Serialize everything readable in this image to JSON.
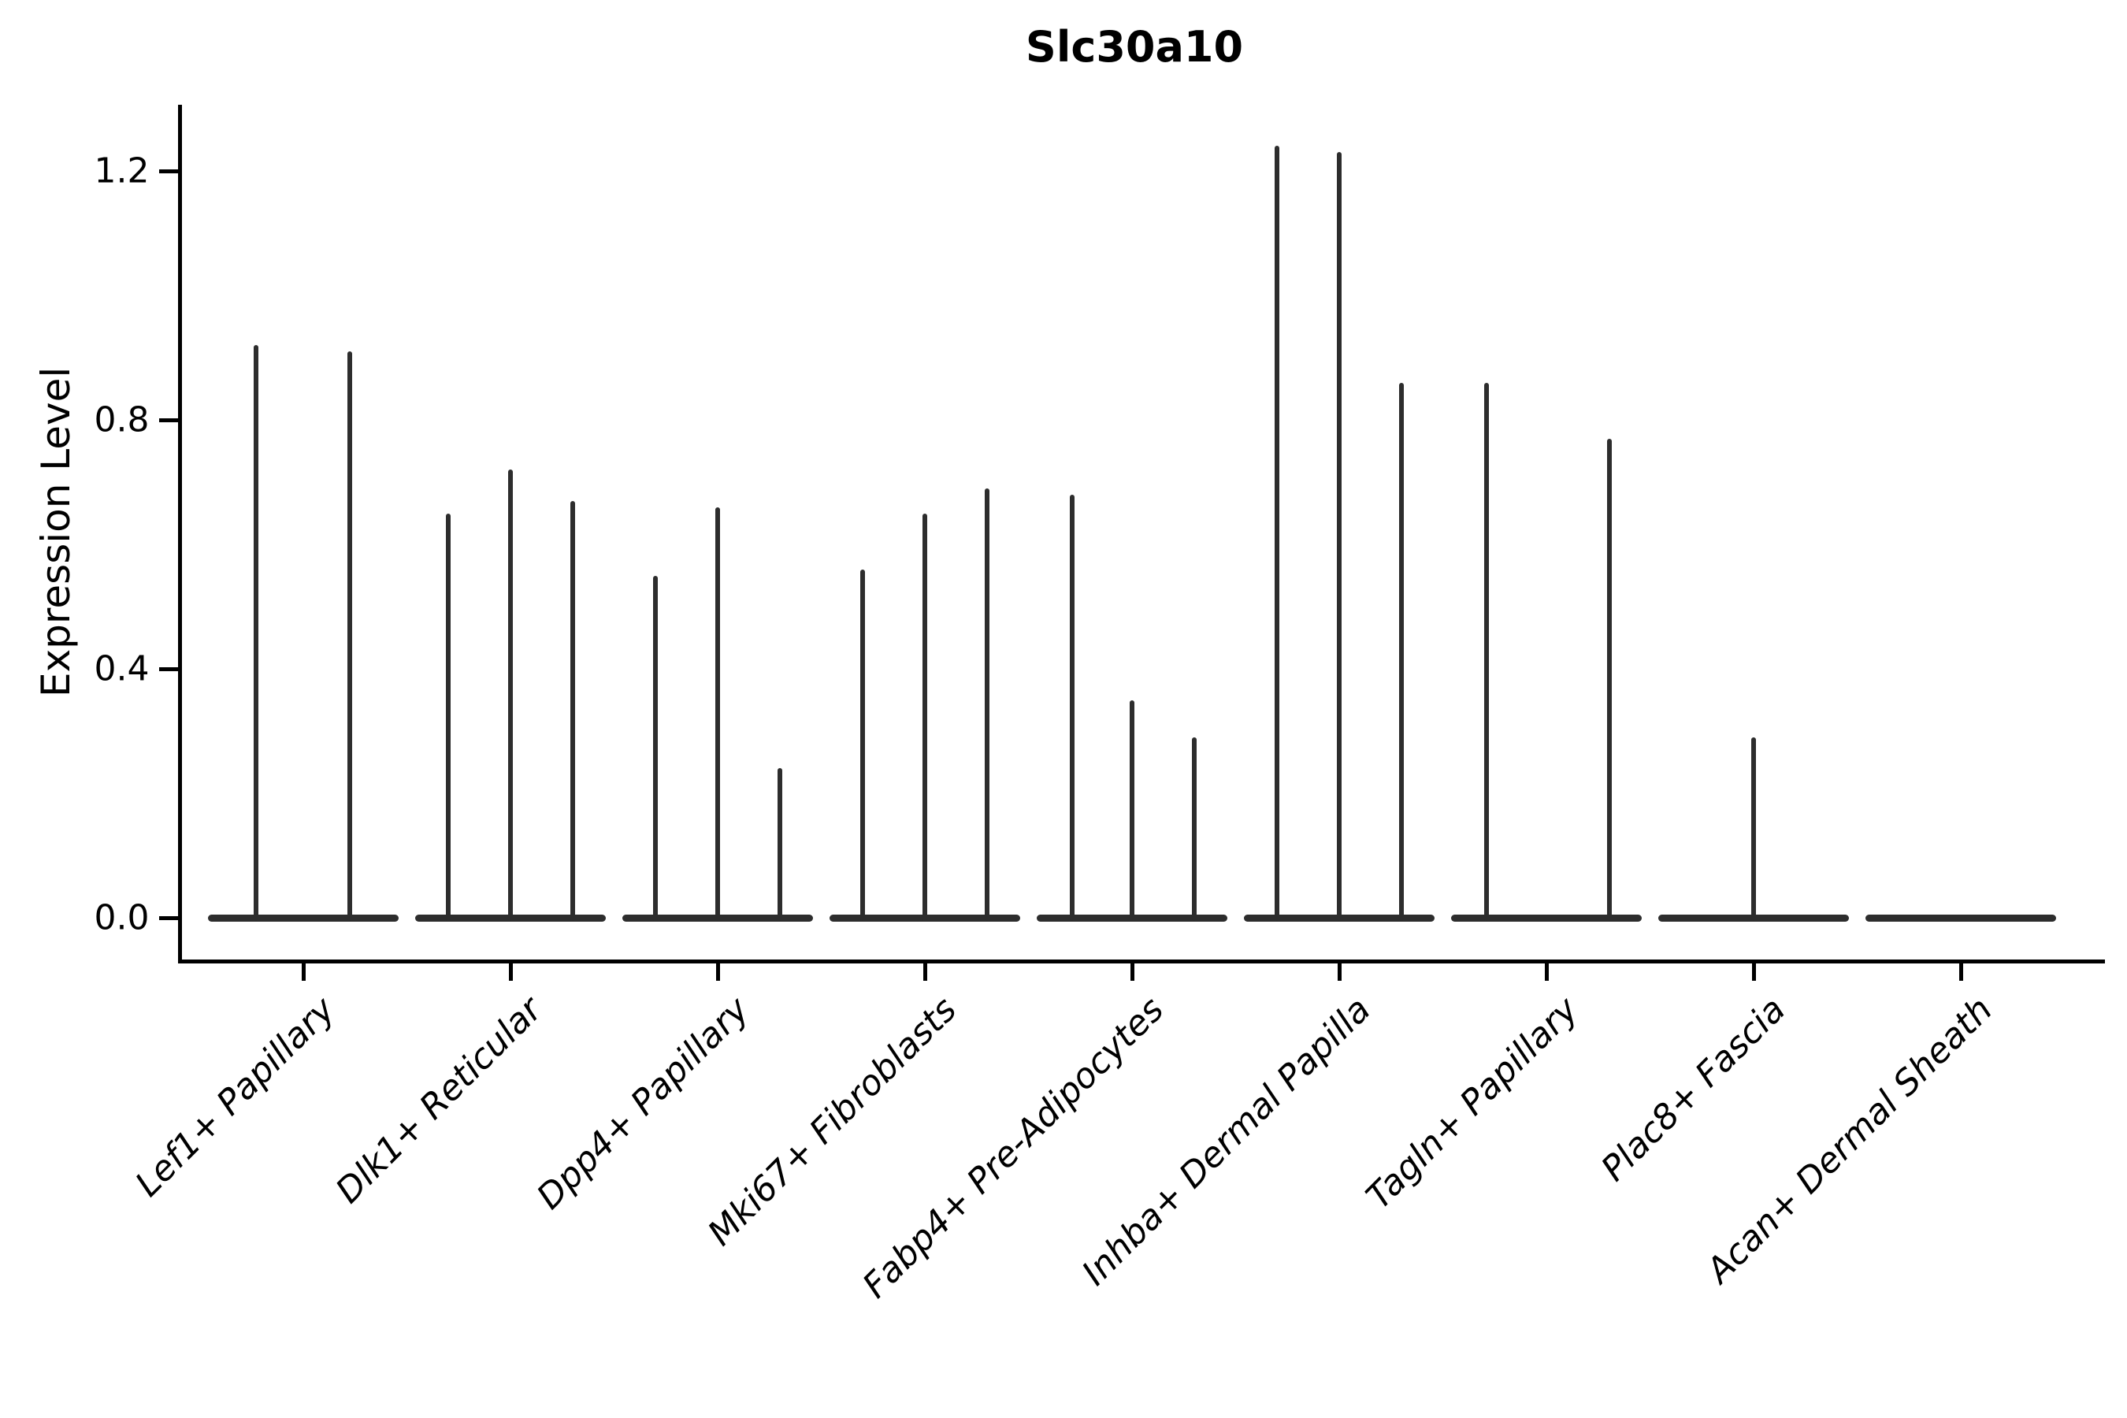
{
  "figure": {
    "background": "#ffffff"
  },
  "chart_data": {
    "type": "violin",
    "title": "Slc30a10",
    "xlabel": "",
    "ylabel": "Expression Level",
    "ylim": [
      -0.07,
      1.3
    ],
    "yticks": [
      "0.0",
      "0.4",
      "0.8",
      "1.2"
    ],
    "ytick_values": [
      0.0,
      0.4,
      0.8,
      1.2
    ],
    "grid": false,
    "legend": null,
    "ink_color": "#000000",
    "violin_color": "#2d2d2d",
    "categories": [
      "Lef1+ Papillary",
      "Dlk1+ Reticular",
      "Dpp4+ Papillary",
      "Mki67+ Fibroblasts",
      "Fabp4+ Pre-Adipocytes",
      "Inhba+ Dermal Papilla",
      "Tagln+ Papillary",
      "Plac8+ Fascia",
      "Acan+ Dermal Sheath"
    ],
    "groups": [
      {
        "label": "Lef1+ Papillary",
        "violins": [
          {
            "offset": -60,
            "max": 0.92
          },
          {
            "offset": 59,
            "max": 0.91
          }
        ]
      },
      {
        "label": "Dlk1+ Reticular",
        "violins": [
          {
            "offset": -79,
            "max": 0.65
          },
          {
            "offset": 0,
            "max": 0.72
          },
          {
            "offset": 79,
            "max": 0.67
          }
        ]
      },
      {
        "label": "Dpp4+ Papillary",
        "violins": [
          {
            "offset": -79,
            "max": 0.55
          },
          {
            "offset": 0,
            "max": 0.66
          },
          {
            "offset": 79,
            "max": 0.24
          }
        ]
      },
      {
        "label": "Mki67+ Fibroblasts",
        "violins": [
          {
            "offset": -79,
            "max": 0.56
          },
          {
            "offset": 0,
            "max": 0.65
          },
          {
            "offset": 79,
            "max": 0.69
          }
        ]
      },
      {
        "label": "Fabp4+ Pre-Adipocytes",
        "violins": [
          {
            "offset": -76,
            "max": 0.68
          },
          {
            "offset": 0,
            "max": 0.35
          },
          {
            "offset": 79,
            "max": 0.29
          }
        ]
      },
      {
        "label": "Inhba+ Dermal Papilla",
        "violins": [
          {
            "offset": -79,
            "max": 1.24
          },
          {
            "offset": 0,
            "max": 1.23
          },
          {
            "offset": 79,
            "max": 0.86
          }
        ]
      },
      {
        "label": "Tagln+ Papillary",
        "violins": [
          {
            "offset": -76,
            "max": 0.86
          },
          {
            "offset": 80,
            "max": 0.77
          }
        ]
      },
      {
        "label": "Plac8+ Fascia",
        "violins": [
          {
            "offset": 0,
            "max": 0.29
          }
        ]
      },
      {
        "label": "Acan+ Dermal Sheath",
        "violins": []
      }
    ]
  }
}
